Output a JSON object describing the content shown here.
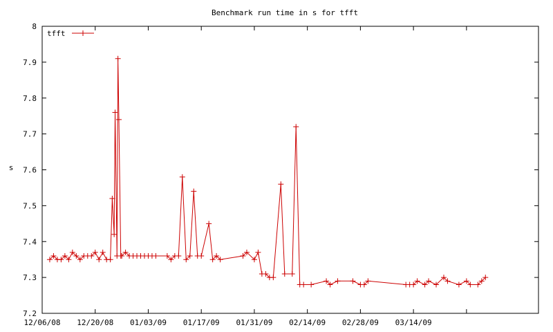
{
  "chart_data": {
    "type": "line",
    "title": "Benchmark run time in s for tfft",
    "xlabel": "",
    "ylabel": "s",
    "ylim": [
      7.2,
      8.0
    ],
    "yticks": [
      7.2,
      7.3,
      7.4,
      7.5,
      7.6,
      7.7,
      7.8,
      7.9,
      8
    ],
    "ytick_labels": [
      "7.2",
      "7.3",
      "7.4",
      "7.5",
      "7.6",
      "7.7",
      "7.8",
      "7.9",
      "8"
    ],
    "xlim": [
      "2008-12-06",
      "2009-04-16"
    ],
    "xticks": [
      "2008-12-06",
      "2008-12-20",
      "2009-01-03",
      "2009-01-17",
      "2009-01-31",
      "2009-02-14",
      "2009-02-28",
      "2009-03-14"
    ],
    "xtick_labels": [
      "12/06/08",
      "12/20/08",
      "01/03/09",
      "01/17/09",
      "01/31/09",
      "02/14/09",
      "02/28/09",
      "03/14/09"
    ],
    "legend_position": "top-left",
    "grid": false,
    "color": "#cc0000",
    "series": [
      {
        "name": "tfft",
        "points": [
          [
            "2008-12-08",
            7.35
          ],
          [
            "2008-12-09",
            7.36
          ],
          [
            "2008-12-10",
            7.35
          ],
          [
            "2008-12-11",
            7.35
          ],
          [
            "2008-12-12",
            7.36
          ],
          [
            "2008-12-13",
            7.35
          ],
          [
            "2008-12-14",
            7.37
          ],
          [
            "2008-12-15",
            7.36
          ],
          [
            "2008-12-16",
            7.35
          ],
          [
            "2008-12-17",
            7.36
          ],
          [
            "2008-12-18",
            7.36
          ],
          [
            "2008-12-19",
            7.36
          ],
          [
            "2008-12-20",
            7.37
          ],
          [
            "2008-12-21",
            7.35
          ],
          [
            "2008-12-22",
            7.37
          ],
          [
            "2008-12-23",
            7.35
          ],
          [
            "2008-12-24",
            7.35
          ],
          [
            "2008-12-24T12:00",
            7.52
          ],
          [
            "2008-12-25",
            7.42
          ],
          [
            "2008-12-25T06:00",
            7.76
          ],
          [
            "2008-12-25T18:00",
            7.36
          ],
          [
            "2008-12-26",
            7.91
          ],
          [
            "2008-12-26T06:00",
            7.74
          ],
          [
            "2008-12-26T18:00",
            7.36
          ],
          [
            "2008-12-27",
            7.36
          ],
          [
            "2008-12-28",
            7.37
          ],
          [
            "2008-12-29",
            7.36
          ],
          [
            "2008-12-30",
            7.36
          ],
          [
            "2008-12-31",
            7.36
          ],
          [
            "2009-01-01",
            7.36
          ],
          [
            "2009-01-02",
            7.36
          ],
          [
            "2009-01-03",
            7.36
          ],
          [
            "2009-01-04",
            7.36
          ],
          [
            "2009-01-05",
            7.36
          ],
          [
            "2009-01-08",
            7.36
          ],
          [
            "2009-01-09",
            7.35
          ],
          [
            "2009-01-10",
            7.36
          ],
          [
            "2009-01-11",
            7.36
          ],
          [
            "2009-01-12",
            7.58
          ],
          [
            "2009-01-13",
            7.35
          ],
          [
            "2009-01-14",
            7.36
          ],
          [
            "2009-01-15",
            7.54
          ],
          [
            "2009-01-16",
            7.36
          ],
          [
            "2009-01-17",
            7.36
          ],
          [
            "2009-01-19",
            7.45
          ],
          [
            "2009-01-20",
            7.35
          ],
          [
            "2009-01-21",
            7.36
          ],
          [
            "2009-01-22",
            7.35
          ],
          [
            "2009-01-28",
            7.36
          ],
          [
            "2009-01-29",
            7.37
          ],
          [
            "2009-01-31",
            7.35
          ],
          [
            "2009-02-01",
            7.37
          ],
          [
            "2009-02-02",
            7.31
          ],
          [
            "2009-02-03",
            7.31
          ],
          [
            "2009-02-04",
            7.3
          ],
          [
            "2009-02-05",
            7.3
          ],
          [
            "2009-02-07",
            7.56
          ],
          [
            "2009-02-08",
            7.31
          ],
          [
            "2009-02-10",
            7.31
          ],
          [
            "2009-02-11",
            7.72
          ],
          [
            "2009-02-12",
            7.28
          ],
          [
            "2009-02-13",
            7.28
          ],
          [
            "2009-02-15",
            7.28
          ],
          [
            "2009-02-19",
            7.29
          ],
          [
            "2009-02-20",
            7.28
          ],
          [
            "2009-02-22",
            7.29
          ],
          [
            "2009-02-26",
            7.29
          ],
          [
            "2009-02-28",
            7.28
          ],
          [
            "2009-03-01",
            7.28
          ],
          [
            "2009-03-02",
            7.29
          ],
          [
            "2009-03-12",
            7.28
          ],
          [
            "2009-03-13",
            7.28
          ],
          [
            "2009-03-14",
            7.28
          ],
          [
            "2009-03-15",
            7.29
          ],
          [
            "2009-03-17",
            7.28
          ],
          [
            "2009-03-18",
            7.29
          ],
          [
            "2009-03-20",
            7.28
          ],
          [
            "2009-03-22",
            7.3
          ],
          [
            "2009-03-23",
            7.29
          ],
          [
            "2009-03-26",
            7.28
          ],
          [
            "2009-03-28",
            7.29
          ],
          [
            "2009-03-29",
            7.28
          ],
          [
            "2009-03-31",
            7.28
          ],
          [
            "2009-04-01",
            7.29
          ],
          [
            "2009-04-02",
            7.3
          ]
        ]
      }
    ]
  }
}
